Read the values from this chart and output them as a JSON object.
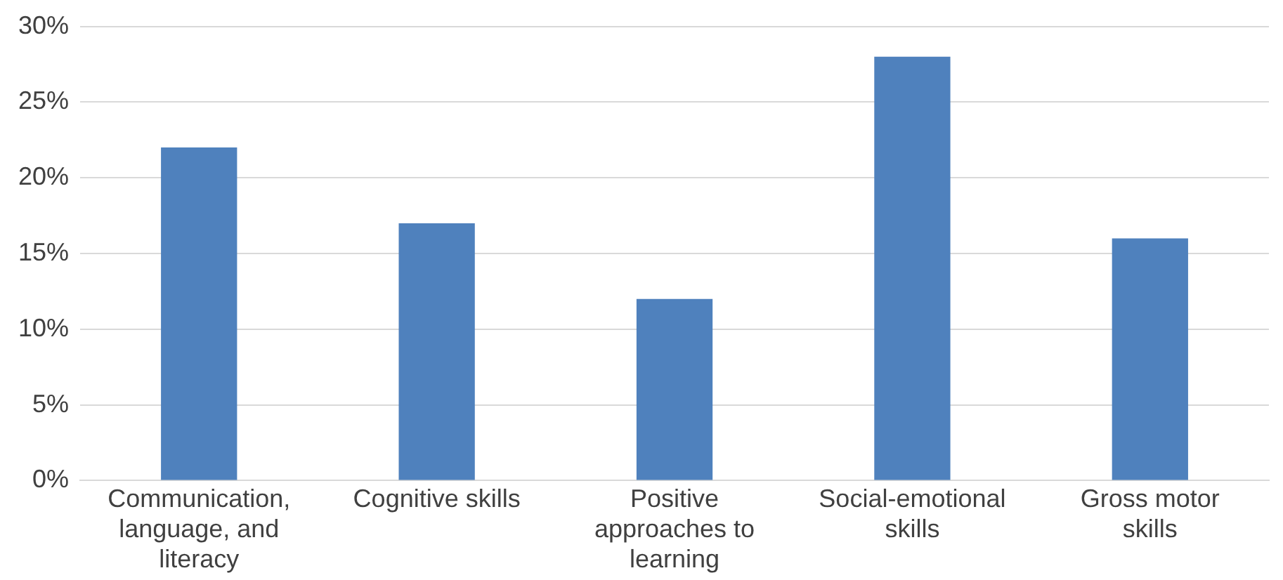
{
  "chart_data": {
    "type": "bar",
    "categories": [
      "Communication, language, and literacy",
      "Cognitive skills",
      "Positive approaches to learning",
      "Social-emotional skills",
      "Gross motor skills"
    ],
    "values": [
      22,
      17,
      12,
      28,
      16
    ],
    "color": "#4f81bd",
    "ylim": [
      0,
      30
    ],
    "yticks": [
      {
        "value": 0,
        "label": "0%"
      },
      {
        "value": 5,
        "label": "5%"
      },
      {
        "value": 10,
        "label": "10%"
      },
      {
        "value": 15,
        "label": "15%"
      },
      {
        "value": 20,
        "label": "20%"
      },
      {
        "value": 25,
        "label": "25%"
      },
      {
        "value": 30,
        "label": "30%"
      }
    ],
    "grid": "y",
    "legend": false
  }
}
